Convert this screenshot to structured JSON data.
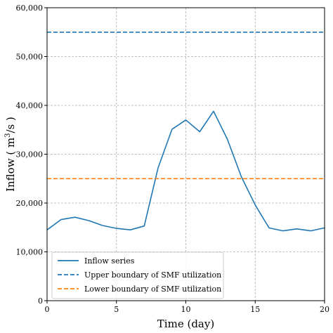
{
  "chart_data": {
    "type": "line",
    "xlabel": "Time (day)",
    "ylabel_main": "Inflow ( m",
    "ylabel_sup": "3",
    "ylabel_end": "/s )",
    "xlim": [
      0,
      20
    ],
    "ylim": [
      0,
      60000
    ],
    "x_ticks": [
      0,
      5,
      10,
      15,
      20
    ],
    "x_tick_labels": [
      "0",
      "5",
      "10",
      "15",
      "20"
    ],
    "y_ticks": [
      0,
      10000,
      20000,
      30000,
      40000,
      50000,
      60000
    ],
    "y_tick_labels": [
      "0",
      "10,000",
      "20,000",
      "30,000",
      "40,000",
      "50,000",
      "60,000"
    ],
    "grid": true,
    "legend_position": "bottom-left",
    "series": [
      {
        "name": "Inflow series",
        "style": "solid",
        "color": "#1f77b4",
        "x": [
          0,
          1,
          2,
          3,
          4,
          5,
          6,
          7,
          8,
          9,
          10,
          11,
          12,
          13,
          14,
          15,
          16,
          17,
          18,
          19,
          20
        ],
        "values": [
          14500,
          16600,
          17100,
          16400,
          15400,
          14800,
          14500,
          15300,
          27200,
          35100,
          37000,
          34600,
          38800,
          33000,
          25400,
          19600,
          14900,
          14300,
          14700,
          14300,
          14900
        ]
      },
      {
        "name": "Upper boundary of SMF utilization",
        "style": "dashed",
        "color": "#1f77b4",
        "x": [
          0,
          20
        ],
        "values": [
          55000,
          55000
        ]
      },
      {
        "name": "Lower boundary of SMF utilization",
        "style": "dashed",
        "color": "#ff7f0e",
        "x": [
          0,
          20
        ],
        "values": [
          25000,
          25000
        ]
      }
    ]
  }
}
